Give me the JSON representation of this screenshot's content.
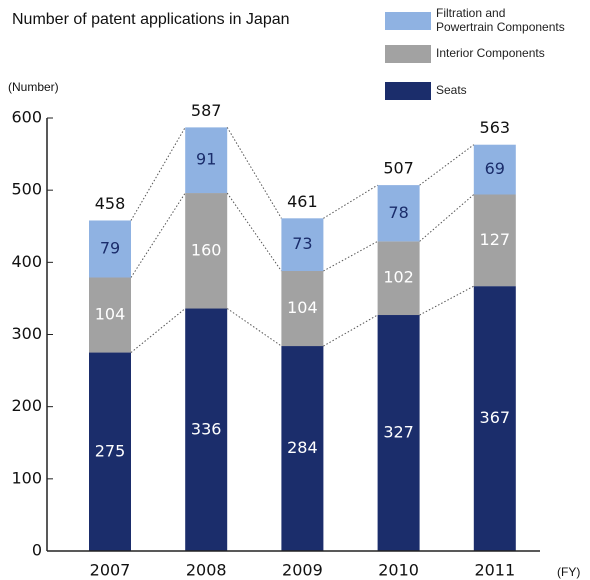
{
  "chart_data": {
    "type": "stacked-bar",
    "title": "Number of patent applications in Japan",
    "y_label": "(Number)",
    "x_label": "(FY)",
    "categories": [
      "2007",
      "2008",
      "2009",
      "2010",
      "2011"
    ],
    "series": [
      {
        "name": "Seats",
        "color": "#1b2d6b",
        "label_color": "#ffffff",
        "values": [
          275,
          336,
          284,
          327,
          367
        ]
      },
      {
        "name": "Interior Components",
        "color": "#a2a2a2",
        "label_color": "#ffffff",
        "values": [
          104,
          160,
          104,
          102,
          127
        ]
      },
      {
        "name": "Filtration and Powertrain Components",
        "color": "#8fb2e2",
        "label_color": "#1b2d6b",
        "values": [
          79,
          91,
          73,
          78,
          69
        ]
      }
    ],
    "totals": [
      458,
      587,
      461,
      507,
      563
    ],
    "ylim": [
      0,
      600
    ],
    "yticks": [
      0,
      100,
      200,
      300,
      400,
      500,
      600
    ]
  }
}
